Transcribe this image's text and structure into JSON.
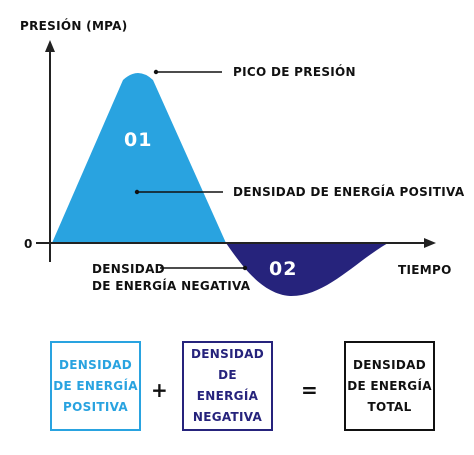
{
  "colors": {
    "positive": "#29a3e0",
    "negative": "#26237c",
    "total": "#111111",
    "axis": "#222222"
  },
  "axes": {
    "y_label": "PRESIÓN (MPA)",
    "x_label": "TIEMPO",
    "origin_label": "0"
  },
  "annotations": {
    "peak": "PICO DE PRESIÓN",
    "positive_density": "DENSIDAD DE ENERGÍA POSITIVA",
    "negative_density_line1": "DENSIDAD",
    "negative_density_line2": "DE ENERGÍA NEGATIVA"
  },
  "zones": {
    "positive_number": "01",
    "negative_number": "02"
  },
  "equation": {
    "box_positive": [
      "DENSIDAD",
      "DE ENERGÍA",
      "POSITIVA"
    ],
    "operator_plus": "+",
    "box_negative": [
      "DENSIDAD DE",
      "ENERGÍA",
      "NEGATIVA"
    ],
    "operator_equal": "=",
    "box_total": [
      "DENSIDAD",
      "DE ENERGÍA",
      "TOTAL"
    ]
  }
}
